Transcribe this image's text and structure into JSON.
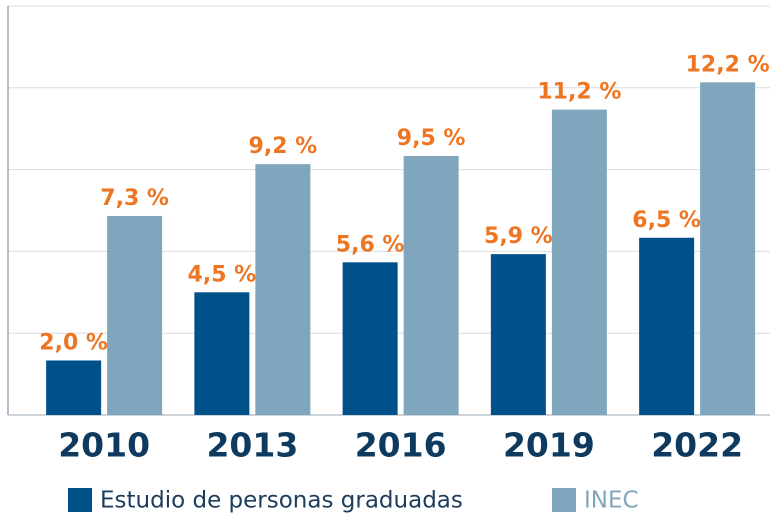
{
  "chart_data": {
    "type": "bar",
    "categories": [
      "2010",
      "2013",
      "2016",
      "2019",
      "2022"
    ],
    "series": [
      {
        "name": "Estudio de personas graduadas",
        "color": "#00518a",
        "values": [
          2.0,
          4.5,
          5.6,
          5.9,
          6.5
        ],
        "value_labels": [
          "2,0 %",
          "4,5 %",
          "5,6 %",
          "5,9 %",
          "6,5 %"
        ]
      },
      {
        "name": "INEC",
        "color": "#7fa6bd",
        "values": [
          7.3,
          9.2,
          9.5,
          11.2,
          12.2
        ],
        "value_labels": [
          "7,3 %",
          "9,2 %",
          "9,5 %",
          "11,2 %",
          "12,2 %"
        ]
      }
    ],
    "ylim": [
      0,
      15
    ],
    "yticks": [
      0,
      3,
      6,
      9,
      12,
      15
    ],
    "grid": true
  }
}
